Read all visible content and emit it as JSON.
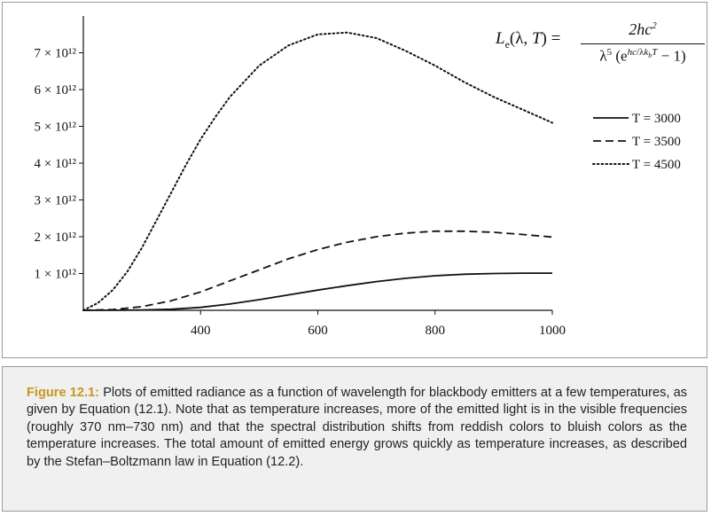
{
  "figure": {
    "label": "Figure 12.1:",
    "caption": " Plots of emitted radiance as a function of wavelength for blackbody emitters at a few temperatures, as given by Equation (12.1). Note that as temperature increases, more of the emitted light is in the visible frequencies (roughly 370 nm–730 nm) and that the spectral distribution shifts from reddish colors to bluish colors as the temperature increases. The total amount of emitted energy grows quickly as temperature increases, as described by the Stefan–Boltzmann law in Equation (12.2)."
  },
  "formula": {
    "lhs": "Le(λ, T) =",
    "numerator": "2hc²",
    "denominator": "λ⁵ (e^(hc/λkbT) − 1)"
  },
  "chart_data": {
    "type": "line",
    "title": "",
    "xlabel": "",
    "ylabel": "",
    "xlim": [
      200,
      1000
    ],
    "ylim": [
      0,
      8000000000000.0
    ],
    "x_ticks": [
      400,
      600,
      800,
      1000
    ],
    "x_tick_labels": [
      "400",
      "600",
      "800",
      "1000"
    ],
    "y_ticks": [
      1000000000000.0,
      2000000000000.0,
      3000000000000.0,
      4000000000000.0,
      5000000000000.0,
      6000000000000.0,
      7000000000000.0
    ],
    "y_tick_labels": [
      "1 × 10¹²",
      "2 × 10¹²",
      "3 × 10¹²",
      "4 × 10¹²",
      "5 × 10¹²",
      "6 × 10¹²",
      "7 × 10¹²"
    ],
    "legend_position": "right",
    "grid": false,
    "series": [
      {
        "name": "T = 3000",
        "style": "solid",
        "x": [
          200,
          250,
          300,
          350,
          400,
          450,
          500,
          550,
          600,
          650,
          700,
          750,
          800,
          850,
          900,
          950,
          1000
        ],
        "values": [
          0,
          2000000000.0,
          10000000000.0,
          30000000000.0,
          80000000000.0,
          170000000000.0,
          290000000000.0,
          420000000000.0,
          550000000000.0,
          670000000000.0,
          780000000000.0,
          870000000000.0,
          940000000000.0,
          980000000000.0,
          1000000000000.0,
          1010000000000.0,
          1010000000000.0
        ]
      },
      {
        "name": "T = 3500",
        "style": "dashed",
        "x": [
          200,
          250,
          300,
          350,
          400,
          450,
          500,
          550,
          600,
          650,
          700,
          750,
          800,
          850,
          900,
          950,
          1000
        ],
        "values": [
          0,
          20000000000.0,
          100000000000.0,
          260000000000.0,
          500000000000.0,
          800000000000.0,
          1100000000000.0,
          1400000000000.0,
          1650000000000.0,
          1850000000000.0,
          2000000000000.0,
          2100000000000.0,
          2150000000000.0,
          2150000000000.0,
          2120000000000.0,
          2060000000000.0,
          1990000000000.0
        ]
      },
      {
        "name": "T = 4500",
        "style": "dotted",
        "x": [
          200,
          225,
          250,
          275,
          300,
          325,
          350,
          375,
          400,
          425,
          450,
          500,
          550,
          600,
          650,
          700,
          750,
          800,
          850,
          900,
          950,
          1000
        ],
        "values": [
          0,
          200000000000.0,
          550000000000.0,
          1050000000000.0,
          1700000000000.0,
          2450000000000.0,
          3200000000000.0,
          3950000000000.0,
          4650000000000.0,
          5250000000000.0,
          5800000000000.0,
          6650000000000.0,
          7200000000000.0,
          7500000000000.0,
          7550000000000.0,
          7400000000000.0,
          7050000000000.0,
          6650000000000.0,
          6200000000000.0,
          5800000000000.0,
          5450000000000.0,
          5100000000000.0
        ]
      }
    ]
  }
}
